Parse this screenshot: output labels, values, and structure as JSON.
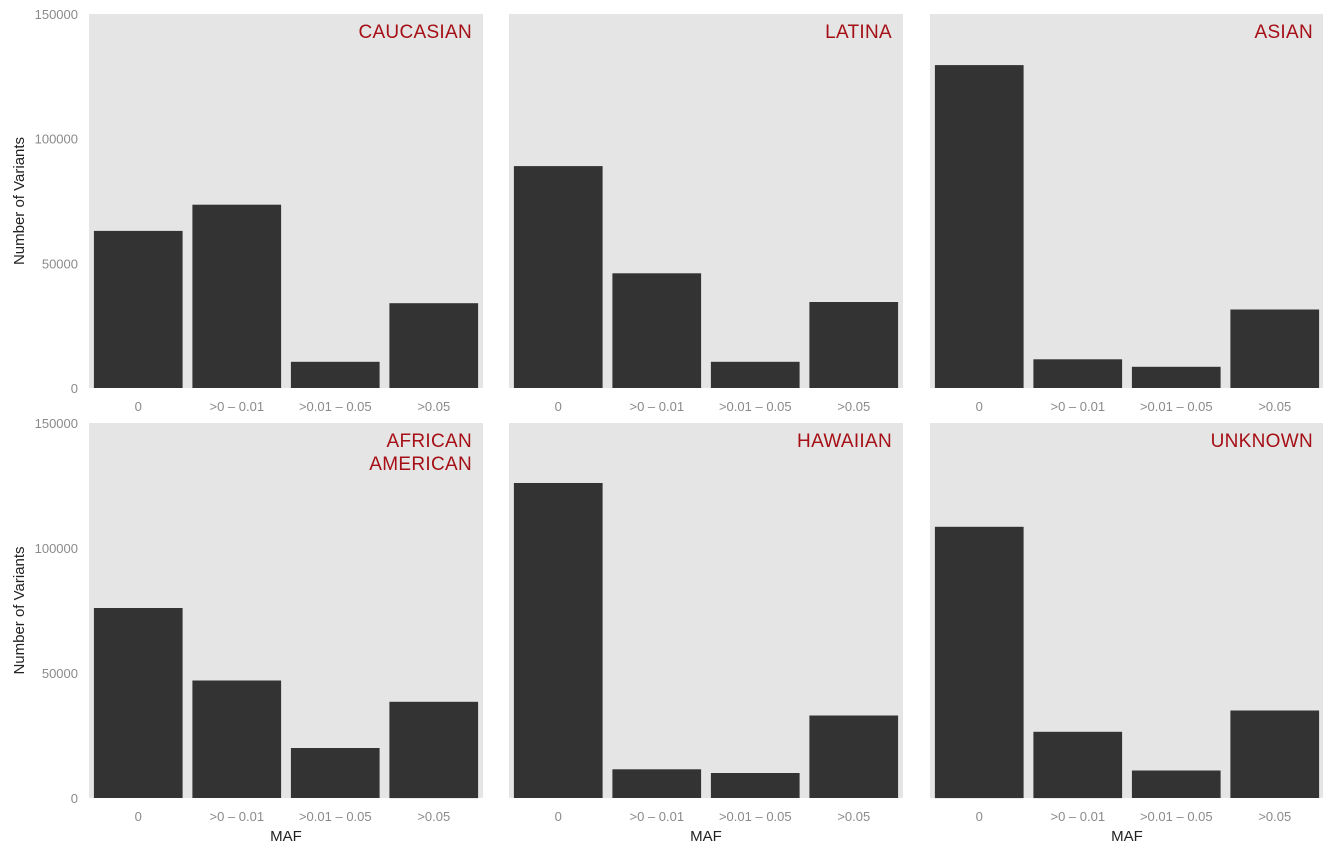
{
  "chart_data": {
    "type": "bar",
    "layout": "facet-grid 2x3",
    "xlabel": "MAF",
    "ylabel": "Number of Variants",
    "categories": [
      "0",
      ">0 – 0.01",
      ">0.01 – 0.05",
      ">0.05"
    ],
    "ylim": [
      0,
      150000
    ],
    "yticks": [
      "0",
      "50000",
      "100000",
      "150000"
    ],
    "grid": false,
    "colors": {
      "bar": "#333333",
      "panel_background": "#e5e5e5",
      "facet_title": "#a50f15"
    },
    "facets": [
      {
        "title": [
          "CAUCASIAN"
        ],
        "values": [
          63000,
          73500,
          10500,
          34000
        ]
      },
      {
        "title": [
          "LATINA"
        ],
        "values": [
          89000,
          46000,
          10500,
          34500
        ]
      },
      {
        "title": [
          "ASIAN"
        ],
        "values": [
          129500,
          11500,
          8500,
          31500
        ]
      },
      {
        "title": [
          "AFRICAN",
          "AMERICAN"
        ],
        "values": [
          76000,
          47000,
          20000,
          38500
        ]
      },
      {
        "title": [
          "HAWAIIAN"
        ],
        "values": [
          126000,
          11500,
          10000,
          33000
        ]
      },
      {
        "title": [
          "UNKNOWN"
        ],
        "values": [
          108500,
          26500,
          11000,
          35000
        ]
      }
    ]
  }
}
